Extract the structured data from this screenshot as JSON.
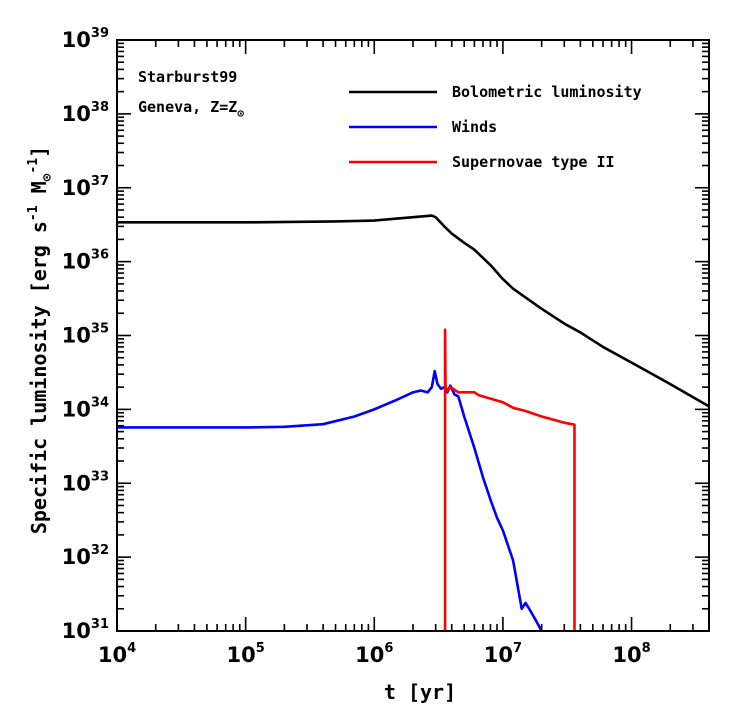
{
  "chart_data": {
    "type": "line",
    "xscale": "log",
    "yscale": "log",
    "xlim": [
      10000,
      400000000
    ],
    "ylim": [
      1e+31,
      1e+39
    ],
    "xlabel": "t [yr]",
    "ylabel": {
      "prefix": "Specific luminosity [erg s",
      "exp1": "-1",
      "mid": " M",
      "sub": "⊙",
      "exp2": "-1",
      "suffix": "]"
    },
    "x_ticks": [
      {
        "value": 10000,
        "base": "10",
        "exp": "4"
      },
      {
        "value": 100000,
        "base": "10",
        "exp": "5"
      },
      {
        "value": 1000000,
        "base": "10",
        "exp": "6"
      },
      {
        "value": 10000000,
        "base": "10",
        "exp": "7"
      },
      {
        "value": 100000000,
        "base": "10",
        "exp": "8"
      }
    ],
    "y_ticks": [
      {
        "value": 1e+31,
        "base": "10",
        "exp": "31"
      },
      {
        "value": 1e+32,
        "base": "10",
        "exp": "32"
      },
      {
        "value": 1e+33,
        "base": "10",
        "exp": "33"
      },
      {
        "value": 1e+34,
        "base": "10",
        "exp": "34"
      },
      {
        "value": 1e+35,
        "base": "10",
        "exp": "35"
      },
      {
        "value": 1e+36,
        "base": "10",
        "exp": "36"
      },
      {
        "value": 1e+37,
        "base": "10",
        "exp": "37"
      },
      {
        "value": 1e+38,
        "base": "10",
        "exp": "38"
      },
      {
        "value": 1e+39,
        "base": "10",
        "exp": "39"
      }
    ],
    "annotations": {
      "line1": "Starburst99",
      "line2_prefix": "Geneva, Z=Z",
      "line2_sub": "⊙"
    },
    "legend_position": "top-right",
    "series": [
      {
        "name": "Bolometric luminosity",
        "color": "#000000",
        "points": [
          [
            10000,
            3.4e+36
          ],
          [
            100000,
            3.4e+36
          ],
          [
            500000,
            3.5e+36
          ],
          [
            1000000,
            3.6e+36
          ],
          [
            2000000,
            4e+36
          ],
          [
            2800000,
            4.2e+36
          ],
          [
            3000000,
            4e+36
          ],
          [
            3500000,
            3e+36
          ],
          [
            4000000,
            2.4e+36
          ],
          [
            5000000,
            1.8e+36
          ],
          [
            6000000,
            1.45e+36
          ],
          [
            8000000,
            9e+35
          ],
          [
            10000000,
            5.8e+35
          ],
          [
            12000000,
            4.3e+35
          ],
          [
            20000000,
            2.3e+35
          ],
          [
            30000000,
            1.45e+35
          ],
          [
            40000000,
            1.1e+35
          ],
          [
            60000000,
            7e+34
          ],
          [
            100000000,
            4.3e+34
          ],
          [
            200000000,
            2.2e+34
          ],
          [
            400000000,
            1.1e+34
          ]
        ]
      },
      {
        "name": "Winds",
        "color": "#0000ff",
        "points": [
          [
            10000,
            5.7e+33
          ],
          [
            100000,
            5.7e+33
          ],
          [
            200000,
            5.8e+33
          ],
          [
            400000,
            6.3e+33
          ],
          [
            700000,
            8e+33
          ],
          [
            1000000,
            1e+34
          ],
          [
            1500000,
            1.35e+34
          ],
          [
            2000000,
            1.7e+34
          ],
          [
            2300000,
            1.8e+34
          ],
          [
            2600000,
            1.7e+34
          ],
          [
            2800000,
            2e+34
          ],
          [
            2950000,
            3.3e+34
          ],
          [
            3100000,
            2.2e+34
          ],
          [
            3300000,
            1.9e+34
          ],
          [
            3500000,
            2e+34
          ],
          [
            3700000,
            1.7e+34
          ],
          [
            3900000,
            2.1e+34
          ],
          [
            4200000,
            1.6e+34
          ],
          [
            4500000,
            1.5e+34
          ],
          [
            5000000,
            8e+33
          ],
          [
            6000000,
            3e+33
          ],
          [
            7000000,
            1.2e+33
          ],
          [
            8000000,
            6e+32
          ],
          [
            9000000,
            3.4e+32
          ],
          [
            10000000,
            2.3e+32
          ],
          [
            12000000,
            9e+31
          ],
          [
            14000000,
            2e+31
          ],
          [
            15000000,
            2.4e+31
          ],
          [
            16000000,
            2e+31
          ],
          [
            18000000,
            1.4e+31
          ],
          [
            20000000,
            1e+31
          ]
        ]
      },
      {
        "name": "Supernovae type II",
        "color": "#ff0000",
        "points": [
          [
            3550000,
            1e+31
          ],
          [
            3550000,
            1.2e+35
          ],
          [
            3580000,
            2e+34
          ],
          [
            3700000,
            1.8e+34
          ],
          [
            3900000,
            2e+34
          ],
          [
            4100000,
            1.9e+34
          ],
          [
            4500000,
            1.7e+34
          ],
          [
            5000000,
            1.7e+34
          ],
          [
            6000000,
            1.7e+34
          ],
          [
            6500000,
            1.55e+34
          ],
          [
            8000000,
            1.4e+34
          ],
          [
            10000000,
            1.25e+34
          ],
          [
            12000000,
            1.05e+34
          ],
          [
            15000000,
            9.5e+33
          ],
          [
            20000000,
            8e+33
          ],
          [
            25000000,
            7.2e+33
          ],
          [
            30000000,
            6.6e+33
          ],
          [
            36000000,
            6.2e+33
          ],
          [
            36000000,
            1e+31
          ]
        ]
      }
    ]
  }
}
